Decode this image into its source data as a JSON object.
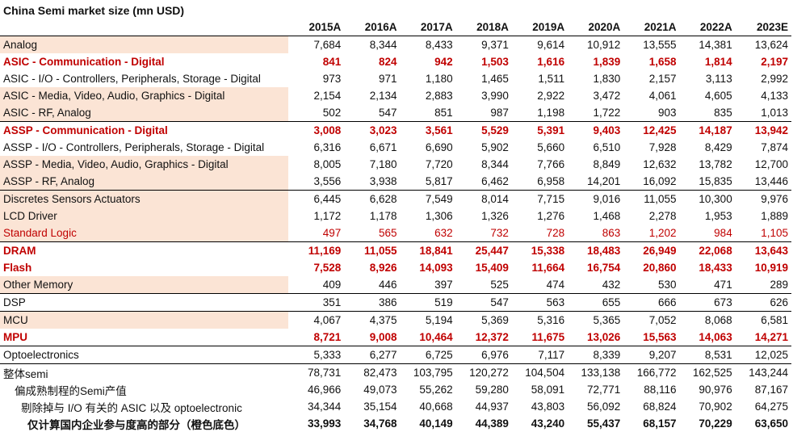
{
  "title": "China Semi market size (mn USD)",
  "years": [
    "2015A",
    "2016A",
    "2017A",
    "2018A",
    "2019A",
    "2020A",
    "2021A",
    "2022A",
    "2023E"
  ],
  "rows": [
    {
      "label": "Analog",
      "values": [
        "7,684",
        "8,344",
        "8,433",
        "9,371",
        "9,614",
        "10,912",
        "13,555",
        "14,381",
        "13,624"
      ],
      "style": "normal",
      "shade": true,
      "sep": true
    },
    {
      "label": "ASIC - Communication - Digital",
      "values": [
        "841",
        "824",
        "942",
        "1,503",
        "1,616",
        "1,839",
        "1,658",
        "1,814",
        "2,197"
      ],
      "style": "red",
      "shade": false,
      "sep": false
    },
    {
      "label": "ASIC - I/O - Controllers, Peripherals, Storage - Digital",
      "values": [
        "973",
        "971",
        "1,180",
        "1,465",
        "1,511",
        "1,830",
        "2,157",
        "3,113",
        "2,992"
      ],
      "style": "normal",
      "shade": false,
      "sep": false
    },
    {
      "label": "ASIC - Media, Video, Audio, Graphics - Digital",
      "values": [
        "2,154",
        "2,134",
        "2,883",
        "3,990",
        "2,922",
        "3,472",
        "4,061",
        "4,605",
        "4,133"
      ],
      "style": "normal",
      "shade": true,
      "sep": false
    },
    {
      "label": "ASIC - RF, Analog",
      "values": [
        "502",
        "547",
        "851",
        "987",
        "1,198",
        "1,722",
        "903",
        "835",
        "1,013"
      ],
      "style": "normal",
      "shade": true,
      "sep": false
    },
    {
      "label": "ASSP - Communication - Digital",
      "values": [
        "3,008",
        "3,023",
        "3,561",
        "5,529",
        "5,391",
        "9,403",
        "12,425",
        "14,187",
        "13,942"
      ],
      "style": "red",
      "shade": false,
      "sep": true
    },
    {
      "label": "ASSP - I/O - Controllers, Peripherals, Storage - Digital",
      "values": [
        "6,316",
        "6,671",
        "6,690",
        "5,902",
        "5,660",
        "6,510",
        "7,928",
        "8,429",
        "7,874"
      ],
      "style": "normal",
      "shade": false,
      "sep": false
    },
    {
      "label": "ASSP - Media, Video, Audio, Graphics - Digital",
      "values": [
        "8,005",
        "7,180",
        "7,720",
        "8,344",
        "7,766",
        "8,849",
        "12,632",
        "13,782",
        "12,700"
      ],
      "style": "normal",
      "shade": true,
      "sep": false
    },
    {
      "label": "ASSP - RF, Analog",
      "values": [
        "3,556",
        "3,938",
        "5,817",
        "6,462",
        "6,958",
        "14,201",
        "16,092",
        "15,835",
        "13,446"
      ],
      "style": "normal",
      "shade": true,
      "sep": false
    },
    {
      "label": "Discretes Sensors Actuators",
      "values": [
        "6,445",
        "6,628",
        "7,549",
        "8,014",
        "7,715",
        "9,016",
        "11,055",
        "10,300",
        "9,976"
      ],
      "style": "normal",
      "shade": true,
      "sep": true
    },
    {
      "label": "LCD Driver",
      "values": [
        "1,172",
        "1,178",
        "1,306",
        "1,326",
        "1,276",
        "1,468",
        "2,278",
        "1,953",
        "1,889"
      ],
      "style": "normal",
      "shade": true,
      "sep": false
    },
    {
      "label": "Standard Logic",
      "values": [
        "497",
        "565",
        "632",
        "732",
        "728",
        "863",
        "1,202",
        "984",
        "1,105"
      ],
      "style": "redtext",
      "shade": true,
      "sep": false
    },
    {
      "label": "DRAM",
      "values": [
        "11,169",
        "11,055",
        "18,841",
        "25,447",
        "15,338",
        "18,483",
        "26,949",
        "22,068",
        "13,643"
      ],
      "style": "red",
      "shade": false,
      "sep": true
    },
    {
      "label": "Flash",
      "values": [
        "7,528",
        "8,926",
        "14,093",
        "15,409",
        "11,664",
        "16,754",
        "20,860",
        "18,433",
        "10,919"
      ],
      "style": "red",
      "shade": false,
      "sep": false
    },
    {
      "label": "Other Memory",
      "values": [
        "409",
        "446",
        "397",
        "525",
        "474",
        "432",
        "530",
        "471",
        "289"
      ],
      "style": "normal",
      "shade": true,
      "sep": false
    },
    {
      "label": "DSP",
      "values": [
        "351",
        "386",
        "519",
        "547",
        "563",
        "655",
        "666",
        "673",
        "626"
      ],
      "style": "normal",
      "shade": false,
      "sep": true
    },
    {
      "label": "MCU",
      "values": [
        "4,067",
        "4,375",
        "5,194",
        "5,369",
        "5,316",
        "5,365",
        "7,052",
        "8,068",
        "6,581"
      ],
      "style": "normal",
      "shade": true,
      "sep": true
    },
    {
      "label": "MPU",
      "values": [
        "8,721",
        "9,008",
        "10,464",
        "12,372",
        "11,675",
        "13,026",
        "15,563",
        "14,063",
        "14,271"
      ],
      "style": "red",
      "shade": false,
      "sep": false
    },
    {
      "label": "Optoelectronics",
      "values": [
        "5,333",
        "6,277",
        "6,725",
        "6,976",
        "7,117",
        "8,339",
        "9,207",
        "8,531",
        "12,025"
      ],
      "style": "normal",
      "shade": false,
      "sep": true
    },
    {
      "label": "整体semi",
      "values": [
        "78,731",
        "82,473",
        "103,795",
        "120,272",
        "104,504",
        "133,138",
        "166,772",
        "162,525",
        "143,244"
      ],
      "style": "normal",
      "shade": false,
      "sep": true,
      "indent": 0
    },
    {
      "label": "偏成熟制程的Semi产值",
      "values": [
        "46,966",
        "49,073",
        "55,262",
        "59,280",
        "58,091",
        "72,771",
        "88,116",
        "90,976",
        "87,167"
      ],
      "style": "normal",
      "shade": false,
      "sep": false,
      "indent": 1
    },
    {
      "label": "剔除掉与 I/O 有关的 ASIC 以及 optoelectronic",
      "values": [
        "34,344",
        "35,154",
        "40,668",
        "44,937",
        "43,803",
        "56,092",
        "68,824",
        "70,902",
        "64,275"
      ],
      "style": "normal",
      "shade": false,
      "sep": false,
      "indent": 2
    },
    {
      "label": "仅计算国内企业参与度高的部分（橙色底色）",
      "values": [
        "33,993",
        "34,768",
        "40,149",
        "44,389",
        "43,240",
        "55,437",
        "68,157",
        "70,229",
        "63,650"
      ],
      "style": "bold",
      "shade": false,
      "sep": false,
      "indent": 3
    }
  ],
  "colors": {
    "shade": "#fbe4d5",
    "red": "#c00000"
  }
}
